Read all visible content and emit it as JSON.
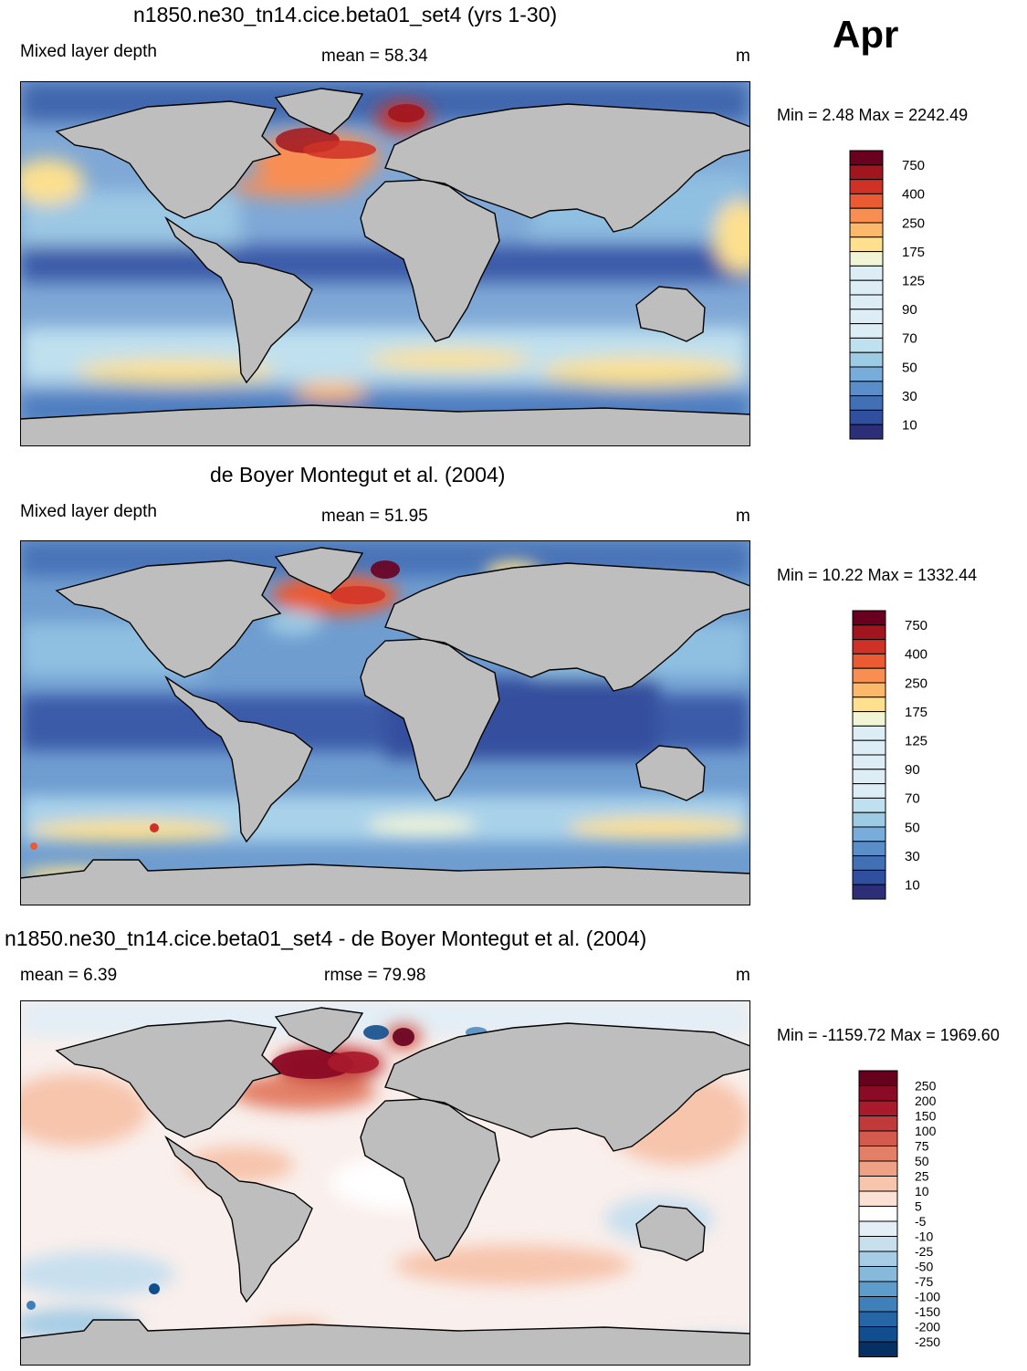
{
  "month": "Apr",
  "panels": [
    {
      "id": "model",
      "title": "n1850.ne30_tn14.cice.beta01_set4 (yrs 1-30)",
      "left_label": "Mixed layer depth",
      "center_label": "mean =  58.34",
      "units": "m",
      "minmax": "Min =   2.48 Max = 2242.49",
      "colorbar": {
        "labels": [
          "750",
          "400",
          "250",
          "175",
          "125",
          "90",
          "70",
          "50",
          "30",
          "10"
        ],
        "colors": [
          "#6a0020",
          "#a1161e",
          "#cf3127",
          "#ea5a33",
          "#f98e52",
          "#fdb96b",
          "#fee08f",
          "#f2f5d5",
          "#dcedf5",
          "#bfe0ee",
          "#9dcbe3",
          "#78addb",
          "#5a8ec8",
          "#4170b4",
          "#30509f",
          "#2c2f77"
        ]
      }
    },
    {
      "id": "obs",
      "title": "de Boyer Montegut et al. (2004)",
      "left_label": "Mixed layer depth",
      "center_label": "mean =  51.95",
      "units": "m",
      "minmax": "Min =  10.22 Max = 1332.44",
      "colorbar": {
        "labels": [
          "750",
          "400",
          "250",
          "175",
          "125",
          "90",
          "70",
          "50",
          "30",
          "10"
        ],
        "colors": [
          "#6a0020",
          "#a1161e",
          "#cf3127",
          "#ea5a33",
          "#f98e52",
          "#fdb96b",
          "#fee08f",
          "#f2f5d5",
          "#dcedf5",
          "#bfe0ee",
          "#9dcbe3",
          "#78addb",
          "#5a8ec8",
          "#4170b4",
          "#30509f",
          "#2c2f77"
        ]
      }
    },
    {
      "id": "diff",
      "title": "n1850.ne30_tn14.cice.beta01_set4 - de Boyer Montegut et al. (2004)",
      "left_label": "mean =   6.39",
      "center_label": "rmse =  79.98",
      "units": "m",
      "minmax": "Min = -1159.72 Max = 1969.60",
      "colorbar": {
        "labels": [
          "250",
          "200",
          "150",
          "100",
          "75",
          "50",
          "25",
          "10",
          "5",
          "-5",
          "-10",
          "-25",
          "-50",
          "-75",
          "-100",
          "-150",
          "-200",
          "-250"
        ],
        "colors": [
          "#67001f",
          "#8b0a25",
          "#a91a2c",
          "#c03a3a",
          "#d35a4c",
          "#e37f66",
          "#f0a185",
          "#f7c4ac",
          "#fbe1d3",
          "#ffffff",
          "#e3eef6",
          "#c8dfee",
          "#a6cde5",
          "#86b9da",
          "#5e9ccb",
          "#3f80ba",
          "#2766a6",
          "#124e8d",
          "#063064"
        ]
      }
    }
  ]
}
